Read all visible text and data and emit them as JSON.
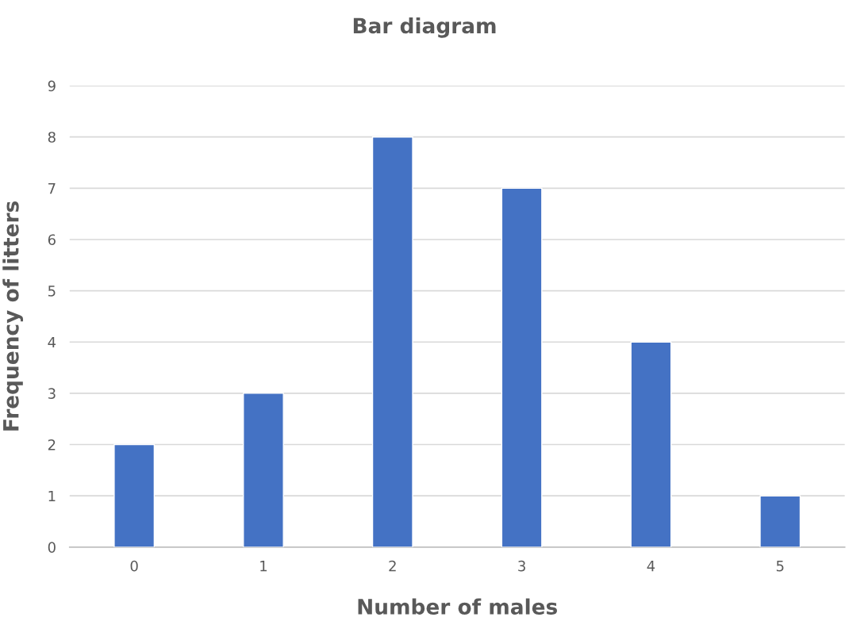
{
  "chart_data": {
    "type": "bar",
    "title": "Bar diagram",
    "xlabel": "Number of males",
    "ylabel": "Frequency of litters",
    "categories": [
      "0",
      "1",
      "2",
      "3",
      "4",
      "5"
    ],
    "values": [
      2,
      3,
      8,
      7,
      4,
      1
    ],
    "color": "#4472c4",
    "ylim": [
      0,
      9
    ],
    "yticks": [
      0,
      1,
      2,
      3,
      4,
      5,
      6,
      7,
      8,
      9
    ],
    "grid": "y",
    "legend": false
  }
}
